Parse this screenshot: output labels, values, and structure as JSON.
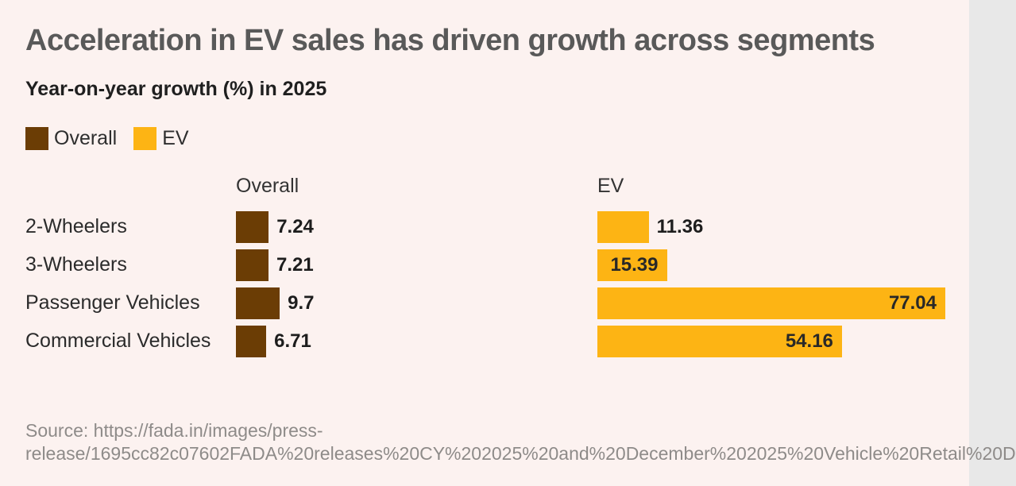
{
  "title": "Acceleration in EV sales has driven growth across segments",
  "subtitle": "Year-on-year growth (%) in 2025",
  "column_headers": {
    "overall": "Overall",
    "ev": "EV"
  },
  "chart_data": {
    "type": "bar",
    "orientation": "horizontal",
    "title": "Acceleration in EV sales has driven growth across segments",
    "subtitle": "Year-on-year growth (%) in 2025",
    "categories": [
      "2-Wheelers",
      "3-Wheelers",
      "Passenger Vehicles",
      "Commercial Vehicles"
    ],
    "series": [
      {
        "name": "Overall",
        "color": "#6b3d05",
        "values": [
          7.24,
          7.21,
          9.7,
          6.71
        ]
      },
      {
        "name": "EV",
        "color": "#fdb414",
        "values": [
          11.36,
          15.39,
          77.04,
          54.16
        ]
      }
    ],
    "value_range": [
      0,
      77.04
    ],
    "grid": false,
    "legend_position": "top-left",
    "value_labels": "on"
  },
  "source": {
    "line1": "Source: https://fada.in/images/press-",
    "line2": "release/1695cc82c07602FADA%20releases%20CY%202025%20and%20December%202025%20Vehicle%20Retail%20D"
  },
  "colors": {
    "background": "#fcf2f0",
    "title_text": "#595959",
    "subtitle_text": "#1f1f1f",
    "overall_bar": "#6b3d05",
    "ev_bar": "#fdb414",
    "value_on_brown": "#ffffff",
    "value_on_yellow": "#282828",
    "source_text": "#8e8b89"
  }
}
